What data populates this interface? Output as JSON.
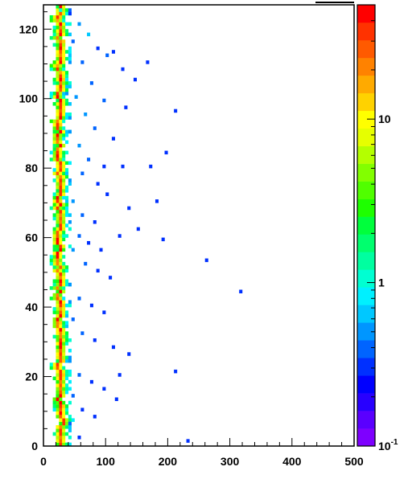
{
  "chart_data": {
    "type": "heatmap",
    "title": "",
    "xlabel": "",
    "ylabel": "",
    "xlim": [
      0,
      500
    ],
    "ylim": [
      0,
      127
    ],
    "x_ticks": [
      0,
      100,
      200,
      300,
      400,
      500
    ],
    "y_ticks": [
      0,
      20,
      40,
      60,
      80,
      100,
      120
    ],
    "color_scale": "log",
    "color_range": [
      0.1,
      50
    ],
    "colorbar_tick_labels": [
      "10",
      "1",
      "10^-1"
    ],
    "palette": [
      "#7e00ff",
      "#5a00ff",
      "#2800ff",
      "#0000ff",
      "#0030ff",
      "#0064ff",
      "#0096ff",
      "#00c8ff",
      "#00f0ff",
      "#00ffd2",
      "#00ffa0",
      "#00ff6e",
      "#00ff3c",
      "#1eff00",
      "#50ff00",
      "#82ff00",
      "#b4ff00",
      "#e6ff00",
      "#ffff00",
      "#ffd200",
      "#ffaa00",
      "#ff8200",
      "#ff5a00",
      "#ff3200",
      "#ff0000"
    ],
    "bin_width_x": 5,
    "bin_height_y": 1,
    "grid": false,
    "cells_note": "Dense band of high-count bins near x=20-30 across all y; sparse low-count bins scattered to the right.",
    "ridge": [
      [
        0,
        26
      ],
      [
        2,
        24
      ],
      [
        4,
        25
      ],
      [
        6,
        27
      ],
      [
        8,
        24
      ],
      [
        10,
        23
      ],
      [
        12,
        22
      ],
      [
        14,
        24
      ],
      [
        16,
        26
      ],
      [
        18,
        25
      ],
      [
        20,
        24
      ],
      [
        22,
        22
      ],
      [
        24,
        23
      ],
      [
        26,
        25
      ],
      [
        28,
        27
      ],
      [
        30,
        26
      ],
      [
        32,
        24
      ],
      [
        34,
        22
      ],
      [
        36,
        23
      ],
      [
        38,
        25
      ],
      [
        40,
        24
      ],
      [
        42,
        22
      ],
      [
        44,
        23
      ],
      [
        46,
        25
      ],
      [
        48,
        24
      ],
      [
        50,
        22
      ],
      [
        52,
        21
      ],
      [
        54,
        23
      ],
      [
        56,
        24
      ],
      [
        58,
        22
      ],
      [
        60,
        21
      ],
      [
        62,
        23
      ],
      [
        64,
        25
      ],
      [
        66,
        24
      ],
      [
        68,
        23
      ],
      [
        70,
        22
      ],
      [
        72,
        24
      ],
      [
        74,
        25
      ],
      [
        76,
        23
      ],
      [
        78,
        22
      ],
      [
        80,
        24
      ],
      [
        82,
        21
      ],
      [
        84,
        20
      ],
      [
        86,
        22
      ],
      [
        88,
        23
      ],
      [
        90,
        22
      ],
      [
        92,
        21
      ],
      [
        94,
        23
      ],
      [
        96,
        25
      ],
      [
        98,
        24
      ],
      [
        100,
        22
      ],
      [
        102,
        23
      ],
      [
        104,
        25
      ],
      [
        106,
        24
      ],
      [
        108,
        23
      ],
      [
        110,
        25
      ],
      [
        112,
        26
      ],
      [
        114,
        24
      ],
      [
        116,
        23
      ],
      [
        118,
        25
      ],
      [
        120,
        24
      ],
      [
        122,
        22
      ],
      [
        124,
        23
      ],
      [
        126,
        25
      ]
    ],
    "scatter_bins": [
      [
        25,
        125,
        1
      ],
      [
        40,
        124,
        0.3
      ],
      [
        55,
        121,
        0.5
      ],
      [
        70,
        118,
        0.6
      ],
      [
        85,
        114,
        0.3
      ],
      [
        100,
        112,
        0.4
      ],
      [
        125,
        108,
        0.3
      ],
      [
        145,
        105,
        0.3
      ],
      [
        110,
        113,
        0.3
      ],
      [
        165,
        110,
        0.3
      ],
      [
        45,
        116,
        0.4
      ],
      [
        60,
        110,
        0.4
      ],
      [
        75,
        104,
        0.4
      ],
      [
        95,
        99,
        0.4
      ],
      [
        130,
        97,
        0.3
      ],
      [
        210,
        96,
        0.3
      ],
      [
        50,
        100,
        0.5
      ],
      [
        65,
        95,
        0.5
      ],
      [
        80,
        91,
        0.4
      ],
      [
        110,
        88,
        0.3
      ],
      [
        40,
        90,
        0.5
      ],
      [
        55,
        86,
        0.5
      ],
      [
        70,
        82,
        0.4
      ],
      [
        95,
        80,
        0.3
      ],
      [
        125,
        80,
        0.3
      ],
      [
        170,
        80,
        0.3
      ],
      [
        195,
        84,
        0.3
      ],
      [
        60,
        78,
        0.4
      ],
      [
        85,
        75,
        0.3
      ],
      [
        100,
        72,
        0.3
      ],
      [
        45,
        70,
        0.5
      ],
      [
        60,
        66,
        0.4
      ],
      [
        80,
        64,
        0.3
      ],
      [
        135,
        68,
        0.3
      ],
      [
        180,
        70,
        0.3
      ],
      [
        40,
        64,
        0.5
      ],
      [
        55,
        60,
        0.4
      ],
      [
        70,
        58,
        0.3
      ],
      [
        90,
        56,
        0.3
      ],
      [
        120,
        60,
        0.3
      ],
      [
        150,
        62,
        0.3
      ],
      [
        190,
        59,
        0.3
      ],
      [
        45,
        56,
        0.5
      ],
      [
        65,
        52,
        0.4
      ],
      [
        85,
        50,
        0.3
      ],
      [
        105,
        48,
        0.3
      ],
      [
        260,
        53,
        0.3
      ],
      [
        40,
        46,
        0.5
      ],
      [
        55,
        42,
        0.4
      ],
      [
        75,
        40,
        0.3
      ],
      [
        95,
        38,
        0.3
      ],
      [
        315,
        44,
        0.3
      ],
      [
        45,
        36,
        0.4
      ],
      [
        60,
        32,
        0.4
      ],
      [
        80,
        30,
        0.3
      ],
      [
        110,
        28,
        0.3
      ],
      [
        135,
        26,
        0.3
      ],
      [
        40,
        24,
        0.5
      ],
      [
        55,
        20,
        0.4
      ],
      [
        75,
        18,
        0.3
      ],
      [
        95,
        16,
        0.3
      ],
      [
        120,
        20,
        0.3
      ],
      [
        210,
        21,
        0.3
      ],
      [
        45,
        14,
        0.4
      ],
      [
        60,
        10,
        0.3
      ],
      [
        80,
        8,
        0.3
      ],
      [
        115,
        13,
        0.3
      ],
      [
        40,
        6,
        0.4
      ],
      [
        55,
        2,
        0.3
      ],
      [
        230,
        1,
        0.3
      ]
    ]
  }
}
